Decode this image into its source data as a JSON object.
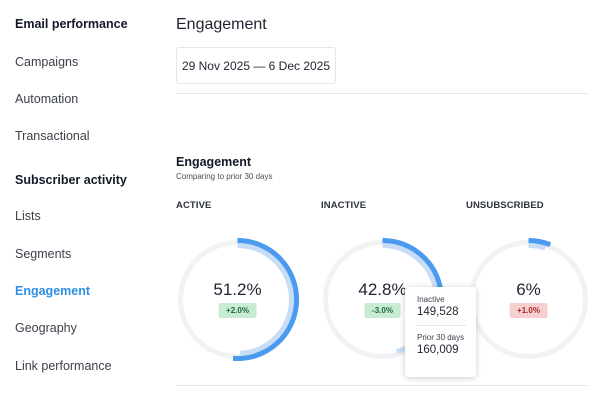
{
  "sidebar": {
    "email_heading": "Email performance",
    "email_items": [
      "Campaigns",
      "Automation",
      "Transactional"
    ],
    "subscriber_heading": "Subscriber activity",
    "subscriber_items": [
      "Lists",
      "Segments",
      "Engagement",
      "Geography",
      "Link performance"
    ],
    "active_item": "Engagement"
  },
  "header": {
    "title": "Engagement",
    "date_range": "29 Nov 2025 — 6 Dec 2025"
  },
  "section": {
    "title": "Engagement",
    "subtitle": "Comparing to prior 30 days"
  },
  "metrics": [
    {
      "label": "ACTIVE",
      "value": "51.2%",
      "change": "+2.0%",
      "change_type": "positive",
      "fraction": 0.512,
      "prior_fraction": 0.492
    },
    {
      "label": "INACTIVE",
      "value": "42.8%",
      "change": "-3.0%",
      "change_type": "positive",
      "fraction": 0.428,
      "prior_fraction": 0.458
    },
    {
      "label": "UNSUBSCRIBED",
      "value": "6%",
      "change": "+1.0%",
      "change_type": "negative",
      "fraction": 0.06,
      "prior_fraction": 0.05
    }
  ],
  "tooltip": {
    "current_label": "Inactive",
    "current_value": "149,528",
    "prior_label": "Prior 30 days",
    "prior_value": "160,009"
  },
  "colors": {
    "accent": "#2f8fe6",
    "ring_current": "#4a9af0",
    "ring_prior": "#c9dcf5",
    "ring_track": "#f1f2f4"
  }
}
